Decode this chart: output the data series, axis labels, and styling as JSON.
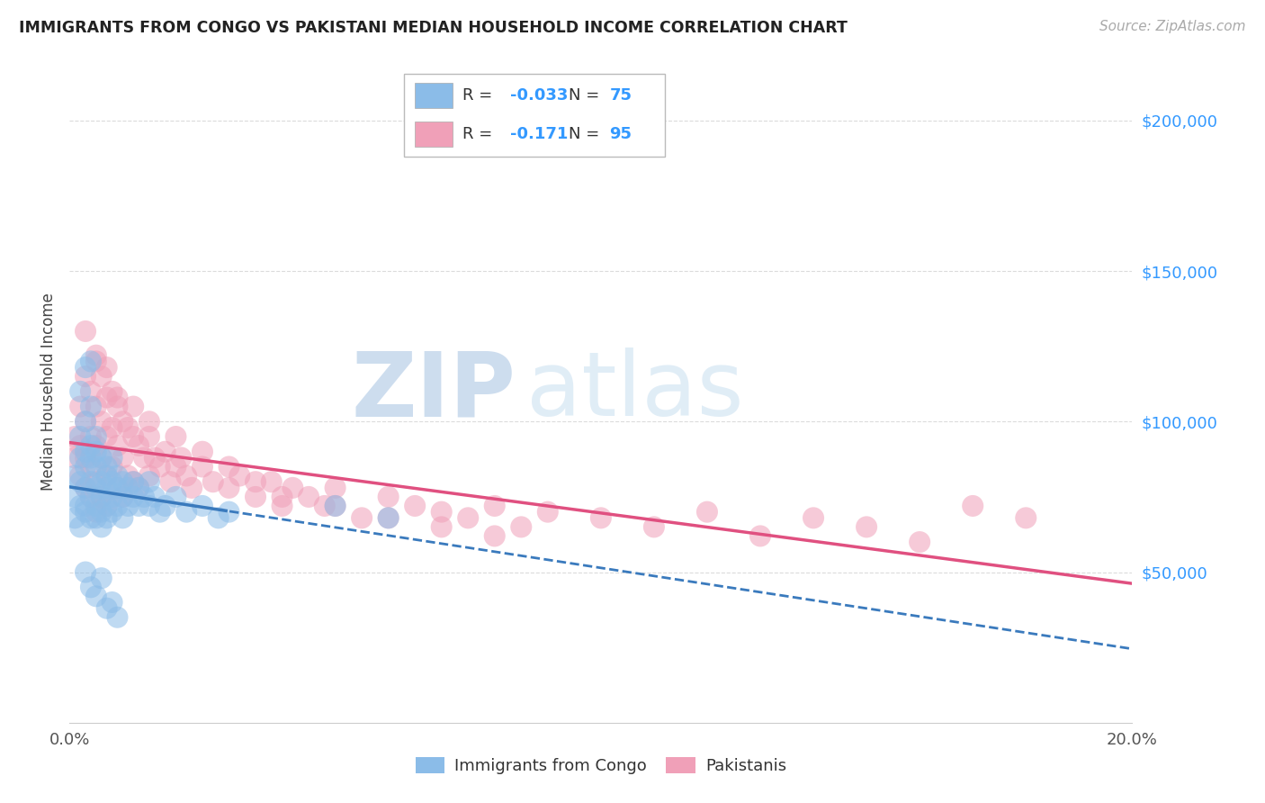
{
  "title": "IMMIGRANTS FROM CONGO VS PAKISTANI MEDIAN HOUSEHOLD INCOME CORRELATION CHART",
  "source": "Source: ZipAtlas.com",
  "ylabel": "Median Household Income",
  "xlim": [
    0.0,
    0.2
  ],
  "ylim": [
    0,
    220000
  ],
  "yticks": [
    50000,
    100000,
    150000,
    200000
  ],
  "ytick_labels": [
    "$50,000",
    "$100,000",
    "$150,000",
    "$200,000"
  ],
  "xticks": [
    0.0,
    0.02,
    0.04,
    0.06,
    0.08,
    0.1,
    0.12,
    0.14,
    0.16,
    0.18,
    0.2
  ],
  "xtick_labels": [
    "0.0%",
    "",
    "",
    "",
    "",
    "",
    "",
    "",
    "",
    "",
    "20.0%"
  ],
  "legend_r_congo": "-0.033",
  "legend_n_congo": "75",
  "legend_r_pak": "-0.171",
  "legend_n_pak": "95",
  "legend_label_congo": "Immigrants from Congo",
  "legend_label_pak": "Pakistanis",
  "watermark_zip": "ZIP",
  "watermark_atlas": "atlas",
  "congo_color": "#8bbce8",
  "pak_color": "#f0a0b8",
  "congo_line_color": "#3a7abd",
  "pak_line_color": "#e05080",
  "background_color": "#ffffff",
  "grid_color": "#d8d8d8",
  "congo_scatter_x": [
    0.001,
    0.001,
    0.001,
    0.002,
    0.002,
    0.002,
    0.002,
    0.002,
    0.003,
    0.003,
    0.003,
    0.003,
    0.003,
    0.003,
    0.004,
    0.004,
    0.004,
    0.004,
    0.004,
    0.004,
    0.005,
    0.005,
    0.005,
    0.005,
    0.005,
    0.005,
    0.006,
    0.006,
    0.006,
    0.006,
    0.006,
    0.007,
    0.007,
    0.007,
    0.007,
    0.007,
    0.008,
    0.008,
    0.008,
    0.008,
    0.009,
    0.009,
    0.009,
    0.01,
    0.01,
    0.01,
    0.011,
    0.011,
    0.012,
    0.012,
    0.013,
    0.013,
    0.014,
    0.015,
    0.015,
    0.016,
    0.017,
    0.018,
    0.02,
    0.022,
    0.025,
    0.028,
    0.03,
    0.003,
    0.004,
    0.005,
    0.006,
    0.007,
    0.008,
    0.009,
    0.002,
    0.003,
    0.004,
    0.05,
    0.06
  ],
  "congo_scatter_y": [
    75000,
    82000,
    68000,
    88000,
    72000,
    95000,
    80000,
    65000,
    90000,
    78000,
    85000,
    70000,
    100000,
    72000,
    92000,
    80000,
    88000,
    75000,
    68000,
    105000,
    85000,
    78000,
    72000,
    90000,
    68000,
    95000,
    80000,
    75000,
    70000,
    88000,
    65000,
    82000,
    78000,
    72000,
    85000,
    68000,
    80000,
    75000,
    70000,
    88000,
    78000,
    72000,
    82000,
    75000,
    80000,
    68000,
    78000,
    72000,
    75000,
    80000,
    72000,
    78000,
    75000,
    80000,
    72000,
    75000,
    70000,
    72000,
    75000,
    70000,
    72000,
    68000,
    70000,
    50000,
    45000,
    42000,
    48000,
    38000,
    40000,
    35000,
    110000,
    118000,
    120000,
    72000,
    68000
  ],
  "pak_scatter_x": [
    0.001,
    0.001,
    0.002,
    0.002,
    0.002,
    0.003,
    0.003,
    0.003,
    0.003,
    0.004,
    0.004,
    0.004,
    0.004,
    0.005,
    0.005,
    0.005,
    0.005,
    0.005,
    0.006,
    0.006,
    0.006,
    0.006,
    0.007,
    0.007,
    0.007,
    0.007,
    0.008,
    0.008,
    0.008,
    0.009,
    0.009,
    0.009,
    0.01,
    0.01,
    0.01,
    0.011,
    0.011,
    0.012,
    0.012,
    0.013,
    0.013,
    0.014,
    0.015,
    0.015,
    0.016,
    0.017,
    0.018,
    0.019,
    0.02,
    0.021,
    0.022,
    0.023,
    0.025,
    0.027,
    0.03,
    0.032,
    0.035,
    0.038,
    0.04,
    0.042,
    0.045,
    0.048,
    0.05,
    0.055,
    0.06,
    0.065,
    0.07,
    0.075,
    0.08,
    0.085,
    0.09,
    0.1,
    0.11,
    0.12,
    0.13,
    0.14,
    0.15,
    0.16,
    0.17,
    0.18,
    0.003,
    0.005,
    0.007,
    0.009,
    0.012,
    0.015,
    0.02,
    0.025,
    0.03,
    0.035,
    0.04,
    0.05,
    0.06,
    0.07,
    0.08
  ],
  "pak_scatter_y": [
    95000,
    88000,
    105000,
    92000,
    82000,
    115000,
    100000,
    88000,
    78000,
    110000,
    95000,
    85000,
    75000,
    120000,
    105000,
    92000,
    80000,
    70000,
    115000,
    100000,
    88000,
    75000,
    108000,
    95000,
    82000,
    72000,
    110000,
    98000,
    85000,
    105000,
    92000,
    78000,
    100000,
    88000,
    75000,
    98000,
    82000,
    95000,
    80000,
    92000,
    78000,
    88000,
    95000,
    82000,
    88000,
    85000,
    90000,
    80000,
    85000,
    88000,
    82000,
    78000,
    85000,
    80000,
    78000,
    82000,
    75000,
    80000,
    72000,
    78000,
    75000,
    72000,
    78000,
    68000,
    75000,
    72000,
    70000,
    68000,
    72000,
    65000,
    70000,
    68000,
    65000,
    70000,
    62000,
    68000,
    65000,
    60000,
    72000,
    68000,
    130000,
    122000,
    118000,
    108000,
    105000,
    100000,
    95000,
    90000,
    85000,
    80000,
    75000,
    72000,
    68000,
    65000,
    62000
  ]
}
